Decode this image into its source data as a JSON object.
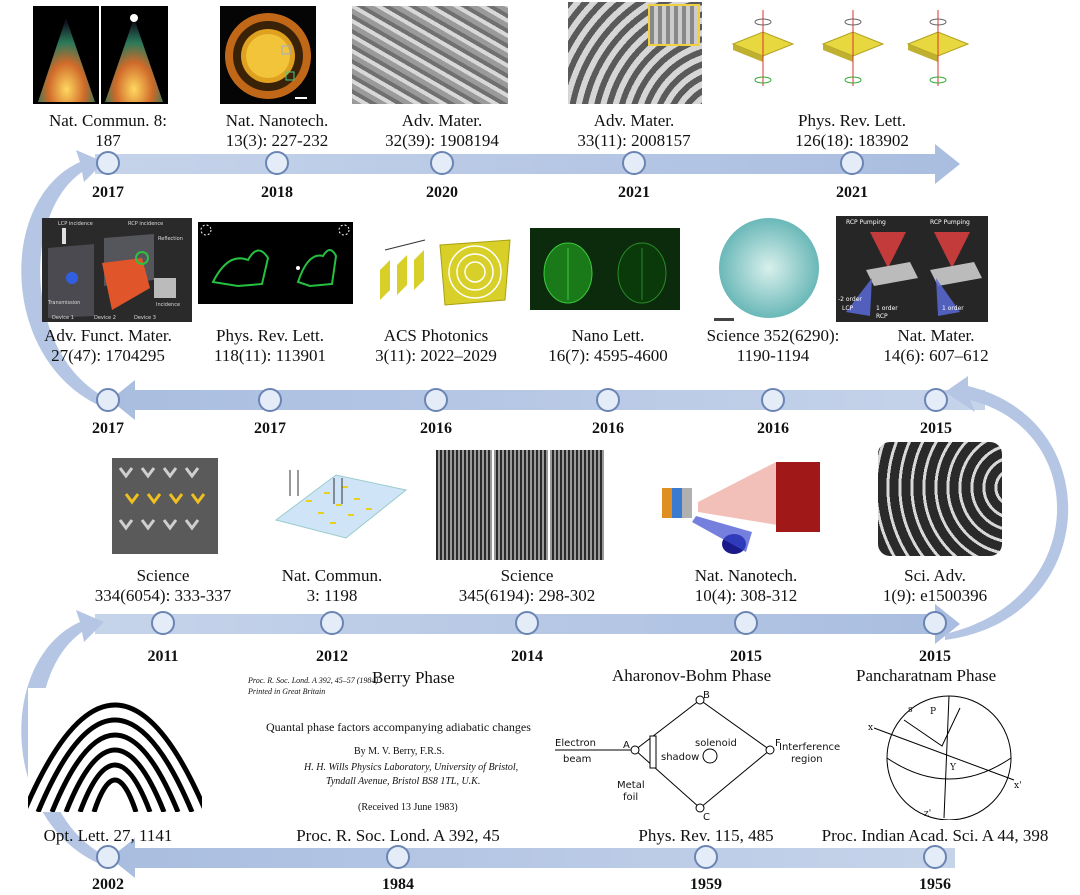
{
  "row1": {
    "items": [
      {
        "journal": "Nat. Commun. 8:",
        "ref": "187",
        "year": "2017"
      },
      {
        "journal": "Nat. Nanotech.",
        "ref": "13(3): 227-232",
        "year": "2018"
      },
      {
        "journal": "Adv. Mater.",
        "ref": "32(39): 1908194",
        "year": "2020"
      },
      {
        "journal": "Adv. Mater.",
        "ref": "33(11): 2008157",
        "year": "2021"
      },
      {
        "journal": "Phys. Rev. Lett.",
        "ref": "126(18): 183902",
        "year": "2021"
      }
    ]
  },
  "row2": {
    "items": [
      {
        "journal": "Adv. Funct. Mater.",
        "ref": "27(47): 1704295",
        "year": "2017"
      },
      {
        "journal": "Phys. Rev. Lett.",
        "ref": "118(11): 113901",
        "year": "2017"
      },
      {
        "journal": "ACS Photonics",
        "ref": "3(11): 2022–2029",
        "year": "2016"
      },
      {
        "journal": "Nano Lett.",
        "ref": "16(7): 4595-4600",
        "year": "2016"
      },
      {
        "journal": "Science 352(6290):",
        "ref": "1190-1194",
        "year": "2016"
      },
      {
        "journal": "Nat. Mater.",
        "ref": "14(6): 607–612",
        "year": "2015"
      }
    ],
    "thumb_texts": {
      "lcp_incidence": "LCP incidence",
      "rcp_incidence": "RCP incidence",
      "reflection": "Reflection",
      "transmission": "Transmission",
      "incidence": "Incidence",
      "device1": "Device 1",
      "device2": "Device 2",
      "device3": "Device 3",
      "rcp_pumping": "RCP Pumping",
      "order_m2": "-2 order",
      "lcp": "LCP",
      "order_1": "1 order",
      "rcp": "RCP"
    }
  },
  "row3": {
    "items": [
      {
        "journal": "Science",
        "ref": "334(6054): 333-337",
        "year": "2011"
      },
      {
        "journal": "Nat. Commun.",
        "ref": "3: 1198",
        "year": "2012"
      },
      {
        "journal": "Science",
        "ref": "345(6194): 298-302",
        "year": "2014"
      },
      {
        "journal": "Nat. Nanotech.",
        "ref": "10(4): 308-312",
        "year": "2015"
      },
      {
        "journal": "Sci. Adv.",
        "ref": "1(9): e1500396",
        "year": "2015"
      }
    ]
  },
  "row4": {
    "items": [
      {
        "ref": "Opt. Lett. 27, 1141",
        "year": "2002"
      },
      {
        "ref": "Proc. R. Soc. Lond. A 392, 45",
        "year": "1984"
      },
      {
        "ref": "Phys. Rev. 115, 485",
        "year": "1959"
      },
      {
        "ref": "Proc. Indian Acad. Sci. A 44, 398",
        "year": "1956"
      }
    ],
    "berry": {
      "caption": "Berry Phase",
      "header1": "Proc. R. Soc. Lond. A 392, 45–57 (1984)",
      "header2": "Printed in Great Britain",
      "title": "Quantal phase factors accompanying adiabatic changes",
      "author": "By M. V. Berry, F.R.S.",
      "affil1": "H. H. Wills Physics Laboratory, University of Bristol,",
      "affil2": "Tyndall Avenue, Bristol BS8 1TL, U.K.",
      "received": "(Received 13 June 1983)"
    },
    "ab": {
      "caption": "Aharonov-Bohm Phase",
      "electron": "Electron",
      "beam": "beam",
      "shadow": "shadow",
      "solenoid": "solenoid",
      "interference": "Interference",
      "region": "region",
      "metal": "Metal",
      "foil": "foil",
      "pa": "A",
      "pb": "B",
      "pc": "C",
      "pf": "F"
    },
    "pancharatnam": {
      "caption": "Pancharatnam Phase",
      "x": "x",
      "xp": "x'",
      "zp": "z'",
      "s": "s",
      "p": "P",
      "y": "Y"
    }
  },
  "colors": {
    "arrow": "#b4c6e4",
    "node_fill": "#e4ecf7",
    "node_stroke": "#6a84b4"
  }
}
